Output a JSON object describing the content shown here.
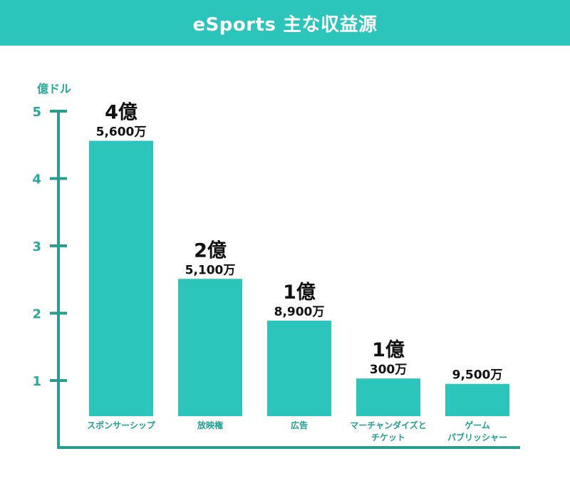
{
  "colors": {
    "bar": "#2bc5bb",
    "axis": "#2a9d8f",
    "tick_text": "#27a89a",
    "label_text": "#1f9e93",
    "value_text": "#111111"
  },
  "chart_data": {
    "type": "bar",
    "title": "eSports 主な収益源",
    "ylabel": "億ドル",
    "xlabel": "",
    "ylim": [
      0,
      5
    ],
    "yticks": [
      "1",
      "2",
      "3",
      "4",
      "5"
    ],
    "grid": false,
    "categories": [
      [
        "スポンサーシップ"
      ],
      [
        "放映権"
      ],
      [
        "広告"
      ],
      [
        "マーチャンダイズと",
        "チケット"
      ],
      [
        "ゲーム",
        "パブリッシャー"
      ]
    ],
    "values": [
      4.56,
      2.51,
      1.89,
      1.03,
      0.95
    ],
    "value_labels": [
      {
        "big": "4億",
        "small": "5,600万"
      },
      {
        "big": "2億",
        "small": "5,100万"
      },
      {
        "big": "1億",
        "small": "8,900万"
      },
      {
        "big": "1億",
        "small": "300万"
      },
      {
        "big": "",
        "small": "9,500万"
      }
    ]
  }
}
